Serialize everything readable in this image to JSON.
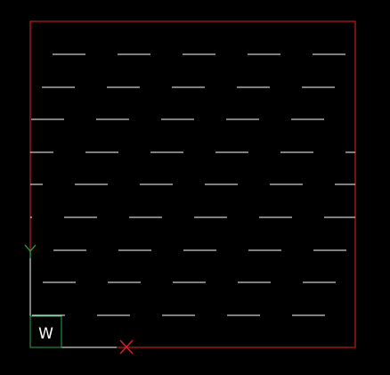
{
  "drawing": {
    "background_color": "#000000",
    "boundary_color": "#e81e25",
    "hatch_color": "#ffffff",
    "hatch_pattern": "dash-line",
    "hatch_rows": 9
  },
  "ucs_icon": {
    "x_axis_label": "X",
    "y_axis_label": "Y",
    "world_label": "W",
    "x_axis_color": "#e81e25",
    "y_axis_color": "#2aa845",
    "axis_color": "#ffffff",
    "world_box_color": "#2aa845"
  }
}
